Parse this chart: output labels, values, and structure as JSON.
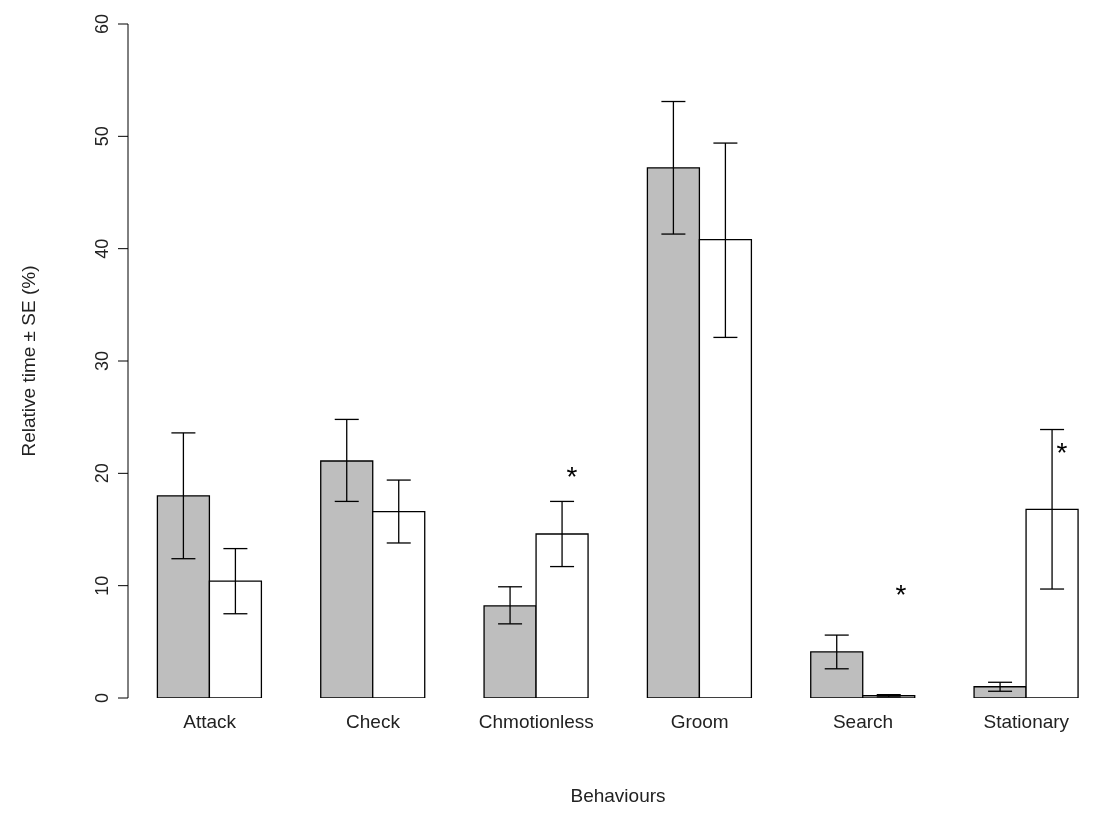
{
  "chart_data": {
    "type": "bar",
    "xlabel": "Behaviours",
    "ylabel": "Relative time ± SE (%)",
    "categories": [
      "Attack",
      "Check",
      "Chmotionless",
      "Groom",
      "Search",
      "Stationary"
    ],
    "series": [
      {
        "color": "#bebebe",
        "values": [
          18.0,
          21.1,
          8.2,
          47.2,
          4.1,
          1.0
        ],
        "errors": [
          [
            12.4,
            23.6
          ],
          [
            17.5,
            24.8
          ],
          [
            6.6,
            9.9
          ],
          [
            41.3,
            53.1
          ],
          [
            2.6,
            5.6
          ],
          [
            0.6,
            1.4
          ]
        ]
      },
      {
        "color": "#ffffff",
        "values": [
          10.4,
          16.6,
          14.6,
          40.8,
          0.2,
          16.8
        ],
        "errors": [
          [
            7.5,
            13.3
          ],
          [
            13.8,
            19.4
          ],
          [
            11.7,
            17.5
          ],
          [
            32.1,
            49.4
          ],
          [
            0.1,
            0.3
          ],
          [
            9.7,
            23.9
          ]
        ]
      }
    ],
    "ylim": [
      0,
      60
    ],
    "yticks": [
      0,
      10,
      20,
      30,
      40,
      50,
      60
    ],
    "grid": false,
    "legend": false,
    "annotations": [
      "*",
      "*",
      "*"
    ]
  }
}
